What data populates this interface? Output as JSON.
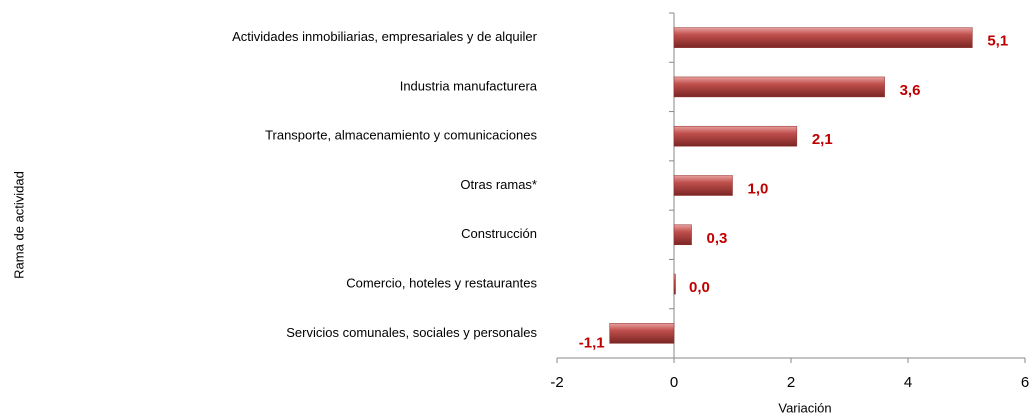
{
  "chart_data": {
    "type": "bar",
    "orientation": "horizontal",
    "categories": [
      "Actividades inmobiliarias, empresariales y de alquiler",
      "Industria manufacturera",
      "Transporte, almacenamiento y comunicaciones",
      "Otras ramas*",
      "Construcción",
      "Comercio, hoteles y restaurantes",
      "Servicios comunales, sociales y personales"
    ],
    "values": [
      5.1,
      3.6,
      2.1,
      1.0,
      0.3,
      0.0,
      -1.1
    ],
    "value_labels": [
      "5,1",
      "3,6",
      "2,1",
      "1,0",
      "0,3",
      "0,0",
      "-1,1"
    ],
    "color": "#c0504d",
    "xlim": [
      -2,
      6
    ],
    "xticks": [
      -2,
      0,
      2,
      4,
      6
    ],
    "xlabel": "Variación",
    "ylabel": "Rama de actividad",
    "grid": false
  }
}
